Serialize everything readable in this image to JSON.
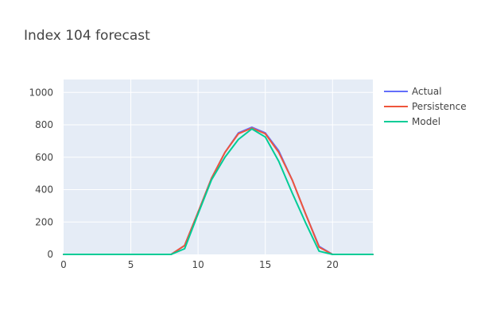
{
  "chart_data": {
    "type": "line",
    "title": "Index 104 forecast",
    "xlabel": "",
    "ylabel": "",
    "xlim": [
      0,
      23
    ],
    "ylim": [
      0,
      1080
    ],
    "x_ticks": [
      0,
      5,
      10,
      15,
      20
    ],
    "y_ticks": [
      0,
      200,
      400,
      600,
      800,
      1000
    ],
    "grid": true,
    "legend_position": "top-right",
    "x": [
      0,
      1,
      2,
      3,
      4,
      5,
      6,
      7,
      8,
      9,
      10,
      11,
      12,
      13,
      14,
      15,
      16,
      17,
      18,
      19,
      20,
      21,
      22,
      23
    ],
    "series": [
      {
        "name": "Actual",
        "color": "#636efa",
        "values": [
          0,
          0,
          0,
          0,
          0,
          0,
          0,
          0,
          0,
          55,
          260,
          470,
          630,
          750,
          785,
          750,
          640,
          460,
          250,
          50,
          0,
          0,
          0,
          0
        ]
      },
      {
        "name": "Persistence",
        "color": "#ef553b",
        "values": [
          0,
          0,
          0,
          0,
          0,
          0,
          0,
          0,
          0,
          55,
          260,
          470,
          630,
          745,
          780,
          745,
          630,
          460,
          250,
          45,
          0,
          0,
          0,
          0
        ]
      },
      {
        "name": "Model",
        "color": "#00cc96",
        "values": [
          0,
          0,
          0,
          0,
          0,
          0,
          0,
          0,
          0,
          35,
          250,
          460,
          600,
          710,
          775,
          725,
          575,
          380,
          195,
          20,
          0,
          0,
          0,
          0
        ]
      }
    ]
  },
  "colors": {
    "plot_background": "#e5ecf6",
    "grid": "#ffffff",
    "text": "#444444"
  }
}
